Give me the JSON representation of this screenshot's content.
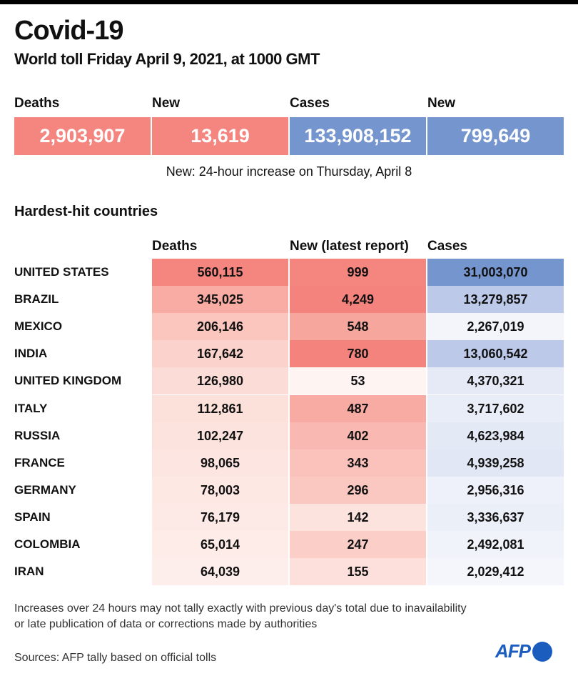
{
  "title": "Covid-19",
  "subtitle": "World toll Friday April 9, 2021, at 1000 GMT",
  "kpis": [
    {
      "label": "Deaths",
      "value": "2,903,907",
      "color": "#f4857f"
    },
    {
      "label": "New",
      "value": "13,619",
      "color": "#f4857f"
    },
    {
      "label": "Cases",
      "value": "133,908,152",
      "color": "#7595cf"
    },
    {
      "label": "New",
      "value": "799,649",
      "color": "#7595cf"
    }
  ],
  "kpi_note": "New: 24-hour increase on Thursday, April 8",
  "section_title": "Hardest-hit countries",
  "chart_data": {
    "type": "table",
    "title": "Hardest-hit countries",
    "columns": [
      "Deaths",
      "New (latest report)",
      "Cases"
    ],
    "rows": [
      {
        "country": "UNITED STATES",
        "deaths": "560,115",
        "new": "999",
        "cases": "31,003,070",
        "dc": "#f4857f",
        "nc": "#f4857f",
        "cc": "#7595cf"
      },
      {
        "country": "BRAZIL",
        "deaths": "345,025",
        "new": "4,249",
        "cases": "13,279,857",
        "dc": "#f8aca4",
        "nc": "#f4827d",
        "cc": "#bcc9e9"
      },
      {
        "country": "MEXICO",
        "deaths": "206,146",
        "new": "548",
        "cases": "2,267,019",
        "dc": "#fac6be",
        "nc": "#f7a69e",
        "cc": "#f3f5fb"
      },
      {
        "country": "INDIA",
        "deaths": "167,642",
        "new": "780",
        "cases": "13,060,542",
        "dc": "#fbd3cc",
        "nc": "#f4827d",
        "cc": "#bcc9e9"
      },
      {
        "country": "UNITED KINGDOM",
        "deaths": "126,980",
        "new": "53",
        "cases": "4,370,321",
        "dc": "#fcdcd6",
        "nc": "#fef5f3",
        "cc": "#e5eaf6"
      },
      {
        "country": "ITALY",
        "deaths": "112,861",
        "new": "487",
        "cases": "3,717,602",
        "dc": "#fce0da",
        "nc": "#f8aba3",
        "cc": "#e9edf7"
      },
      {
        "country": "RUSSIA",
        "deaths": "102,247",
        "new": "402",
        "cases": "4,623,984",
        "dc": "#fde3de",
        "nc": "#f9b8b1",
        "cc": "#e4e9f6"
      },
      {
        "country": "FRANCE",
        "deaths": "98,065",
        "new": "343",
        "cases": "4,939,258",
        "dc": "#fde5e1",
        "nc": "#fac2bb",
        "cc": "#e2e7f5"
      },
      {
        "country": "GERMANY",
        "deaths": "78,003",
        "new": "296",
        "cases": "2,956,316",
        "dc": "#fde8e4",
        "nc": "#fac8c1",
        "cc": "#eef1f9"
      },
      {
        "country": "SPAIN",
        "deaths": "76,179",
        "new": "142",
        "cases": "3,336,637",
        "dc": "#fdeae6",
        "nc": "#fce3de",
        "cc": "#ebeff8"
      },
      {
        "country": "COLOMBIA",
        "deaths": "65,014",
        "new": "247",
        "cases": "2,492,081",
        "dc": "#feece9",
        "nc": "#fbcfc8",
        "cc": "#f1f3fa"
      },
      {
        "country": "IRAN",
        "deaths": "64,039",
        "new": "155",
        "cases": "2,029,412",
        "dc": "#feeeeb",
        "nc": "#fde0db",
        "cc": "#f4f6fb"
      }
    ]
  },
  "footnote_1": "Increases over 24 hours may not tally exactly with previous day's total due to inavailability",
  "footnote_2": "or late publication of data or corrections made by authorities",
  "sources": "Sources: AFP tally based on official tolls",
  "logo_text": "AFP"
}
